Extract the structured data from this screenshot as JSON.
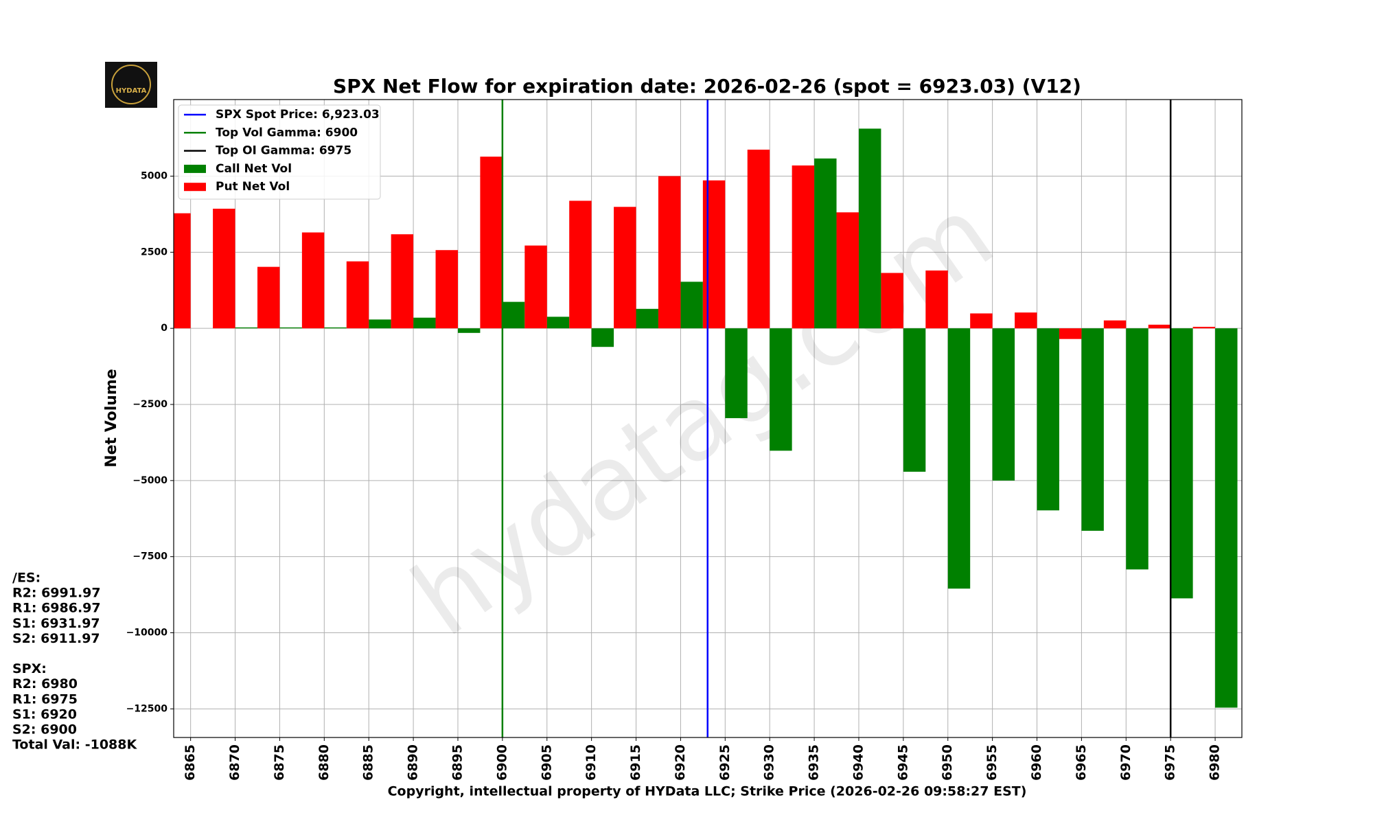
{
  "chart_data": {
    "type": "bar",
    "title": "SPX Net Flow for expiration date: 2026-02-26 (spot = 6923.03) (V12)",
    "xlabel": "Copyright, intellectual property of HYData LLC; Strike Price (2026-02-26 09:58:27 EST)",
    "ylabel": "Net Volume",
    "x": [
      6865,
      6870,
      6875,
      6880,
      6885,
      6890,
      6895,
      6900,
      6905,
      6910,
      6915,
      6920,
      6925,
      6930,
      6935,
      6940,
      6945,
      6950,
      6955,
      6960,
      6965,
      6970,
      6975,
      6980
    ],
    "series": [
      {
        "name": "Call Net Vol",
        "color": "#008000",
        "values": [
          0,
          30,
          30,
          30,
          290,
          350,
          -150,
          870,
          380,
          -610,
          640,
          1530,
          -2950,
          -4020,
          5580,
          6560,
          -4710,
          -8550,
          -5000,
          -5980,
          -6650,
          -7920,
          -8870,
          -12460
        ]
      },
      {
        "name": "Put Net Vol",
        "color": "#ff0000",
        "values": [
          3780,
          3930,
          2020,
          3150,
          2200,
          3090,
          2570,
          5640,
          2720,
          4190,
          3990,
          5000,
          4860,
          5870,
          5350,
          3810,
          1820,
          1900,
          490,
          520,
          -350,
          260,
          120,
          50
        ]
      }
    ],
    "reference_lines": [
      {
        "label": "SPX Spot Price: 6,923.03",
        "x": 6923.03,
        "color": "#0000ff"
      },
      {
        "label": "Top Vol Gamma: 6900",
        "x": 6900,
        "color": "#008000"
      },
      {
        "label": "Top OI Gamma: 6975",
        "x": 6975,
        "color": "#000000"
      }
    ],
    "xlim": [
      6863.1,
      6983
    ],
    "xticks": [
      6865,
      6870,
      6875,
      6880,
      6885,
      6890,
      6895,
      6900,
      6905,
      6910,
      6915,
      6920,
      6925,
      6930,
      6935,
      6940,
      6945,
      6950,
      6955,
      6960,
      6965,
      6970,
      6975,
      6980
    ],
    "ylim": [
      -13440,
      7515
    ],
    "yticks": [
      {
        "value": -12500,
        "label": "−12500"
      },
      {
        "value": -10000,
        "label": "−10000"
      },
      {
        "value": -7500,
        "label": "−7500"
      },
      {
        "value": -5000,
        "label": "−5000"
      },
      {
        "value": -2500,
        "label": "−2500"
      },
      0,
      2500,
      5000
    ],
    "grid": true,
    "legend": "upper left",
    "side_text": [
      "/ES:",
      "R2: 6991.97",
      "R1: 6986.97",
      "S1: 6931.97",
      "S2: 6911.97",
      "",
      "SPX:",
      "R2: 6980",
      "R1: 6975",
      "S1: 6920",
      "S2: 6900",
      "Total Val: -1088K"
    ],
    "logo_text": "HYDATA",
    "watermark": "hydatag.com"
  }
}
